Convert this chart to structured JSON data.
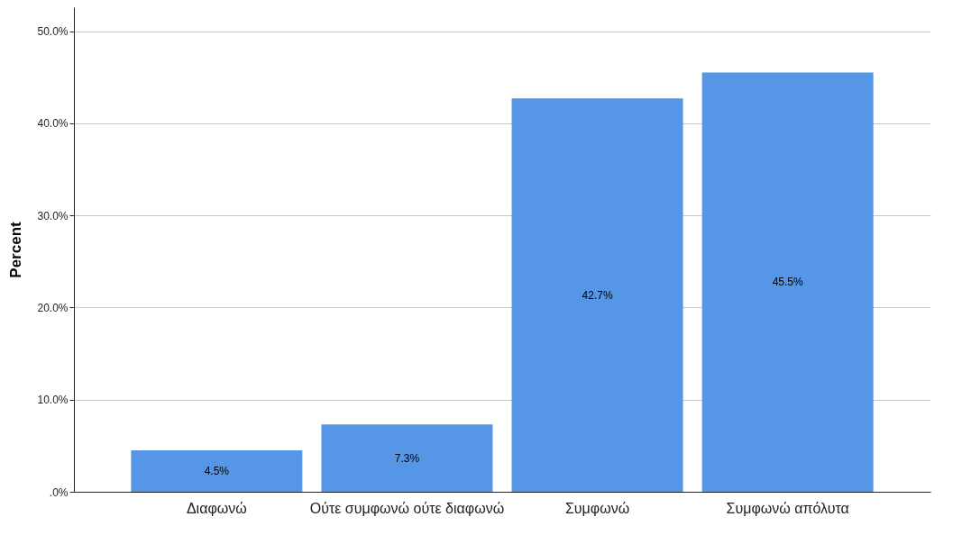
{
  "chart_data": {
    "type": "bar",
    "categories": [
      "Διαφωνώ",
      "Ούτε συμφωνώ ούτε διαφωνώ",
      "Συμφωνώ",
      "Συμφωνώ απόλυτα"
    ],
    "values": [
      4.5,
      7.3,
      42.7,
      45.5
    ],
    "color": "#5596e6",
    "value_labels": [
      "4.5%",
      "7.3%",
      "42.7%",
      "45.5%"
    ],
    "ylabel": "Percent",
    "ylim": [
      0,
      52.6
    ],
    "yticks": [
      {
        "value": 0,
        "label": ".0%"
      },
      {
        "value": 10,
        "label": "10.0%"
      },
      {
        "value": 20,
        "label": "20.0%"
      },
      {
        "value": 30,
        "label": "30.0%"
      },
      {
        "value": 40,
        "label": "40.0%"
      },
      {
        "value": 50,
        "label": "50.0%"
      }
    ],
    "grid": "y"
  }
}
